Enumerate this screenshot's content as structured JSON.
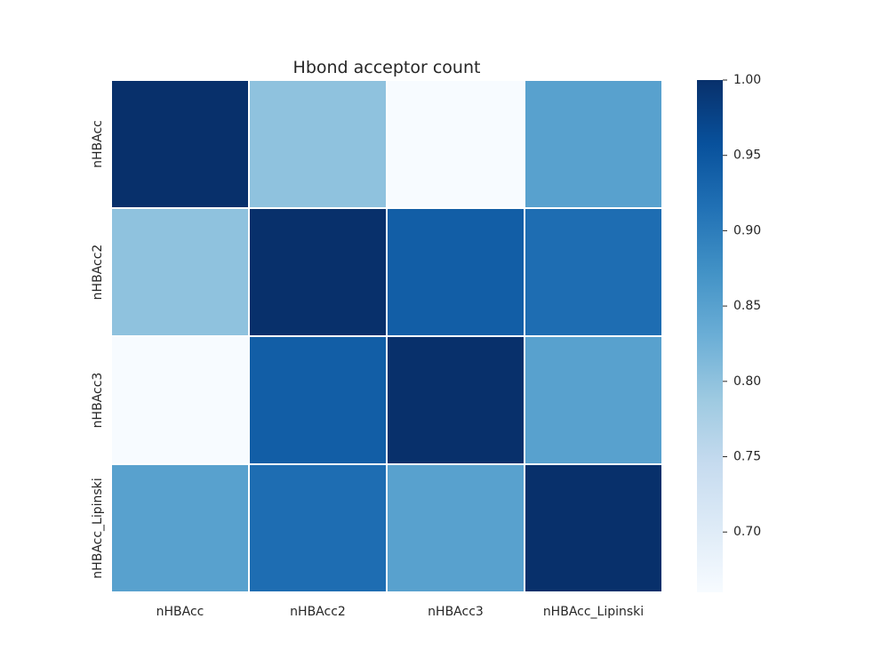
{
  "chart_data": {
    "type": "heatmap",
    "title": "Hbond acceptor count",
    "x_categories": [
      "nHBAcc",
      "nHBAcc2",
      "nHBAcc3",
      "nHBAcc_Lipinski"
    ],
    "y_categories": [
      "nHBAcc",
      "nHBAcc2",
      "nHBAcc3",
      "nHBAcc_Lipinski"
    ],
    "values": [
      [
        1.0,
        0.8,
        0.66,
        0.85
      ],
      [
        0.8,
        1.0,
        0.94,
        0.92
      ],
      [
        0.66,
        0.94,
        1.0,
        0.85
      ],
      [
        0.85,
        0.92,
        0.85,
        1.0
      ]
    ],
    "colormap": "Blues",
    "colorbar": {
      "min": 0.66,
      "max": 1.0,
      "ticks": [
        0.7,
        0.75,
        0.8,
        0.85,
        0.9,
        0.95,
        1.0
      ],
      "tick_labels": [
        "0.70",
        "0.75",
        "0.80",
        "0.85",
        "0.90",
        "0.95",
        "1.00"
      ]
    },
    "gridline_color": "#ffffff"
  }
}
